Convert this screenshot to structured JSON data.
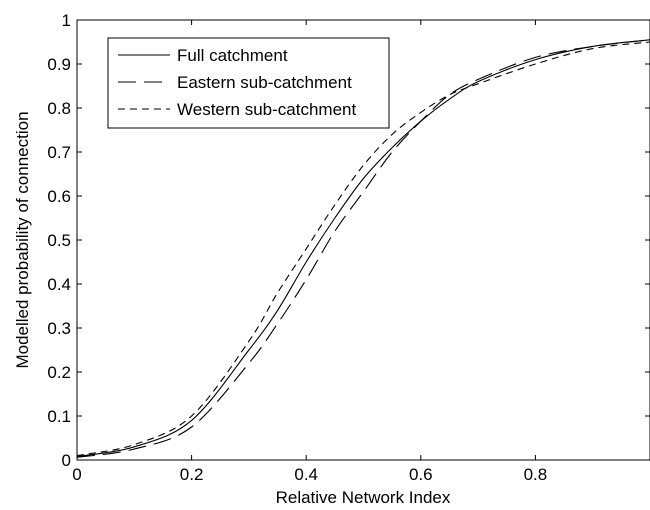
{
  "chart_data": {
    "type": "line",
    "xlabel": "Relative Network Index",
    "ylabel": "Modelled probability of connection",
    "xlim": [
      0,
      1
    ],
    "ylim": [
      0,
      1
    ],
    "xticks": [
      0,
      0.2,
      0.4,
      0.6,
      0.8
    ],
    "xtick_labels": [
      "0",
      "0.2",
      "0.4",
      "0.6",
      "0.8"
    ],
    "yticks": [
      0,
      0.1,
      0.2,
      0.3,
      0.4,
      0.5,
      0.6,
      0.7,
      0.8,
      0.9,
      1
    ],
    "ytick_labels": [
      "0",
      "0.1",
      "0.2",
      "0.3",
      "0.4",
      "0.5",
      "0.6",
      "0.7",
      "0.8",
      "0.9",
      "1"
    ],
    "grid": false,
    "legend_position": "top-left",
    "x": [
      0,
      0.1,
      0.2,
      0.3,
      0.35,
      0.4,
      0.45,
      0.5,
      0.55,
      0.6,
      0.65,
      0.7,
      0.8,
      0.9,
      1.0
    ],
    "series": [
      {
        "name": "Full catchment",
        "style": "solid",
        "values": [
          0.008,
          0.03,
          0.09,
          0.25,
          0.34,
          0.45,
          0.55,
          0.64,
          0.71,
          0.77,
          0.82,
          0.86,
          0.91,
          0.94,
          0.955
        ]
      },
      {
        "name": "Eastern sub-catchment",
        "style": "long-dash",
        "values": [
          0.006,
          0.025,
          0.075,
          0.22,
          0.31,
          0.41,
          0.52,
          0.61,
          0.7,
          0.77,
          0.83,
          0.865,
          0.915,
          0.94,
          0.955
        ]
      },
      {
        "name": "Western sub-catchment",
        "style": "short-dash",
        "values": [
          0.01,
          0.035,
          0.1,
          0.27,
          0.38,
          0.48,
          0.58,
          0.67,
          0.74,
          0.79,
          0.83,
          0.855,
          0.9,
          0.935,
          0.95
        ]
      }
    ],
    "colors": {
      "line": "#000000",
      "frame": "#000000",
      "background": "#ffffff"
    }
  }
}
